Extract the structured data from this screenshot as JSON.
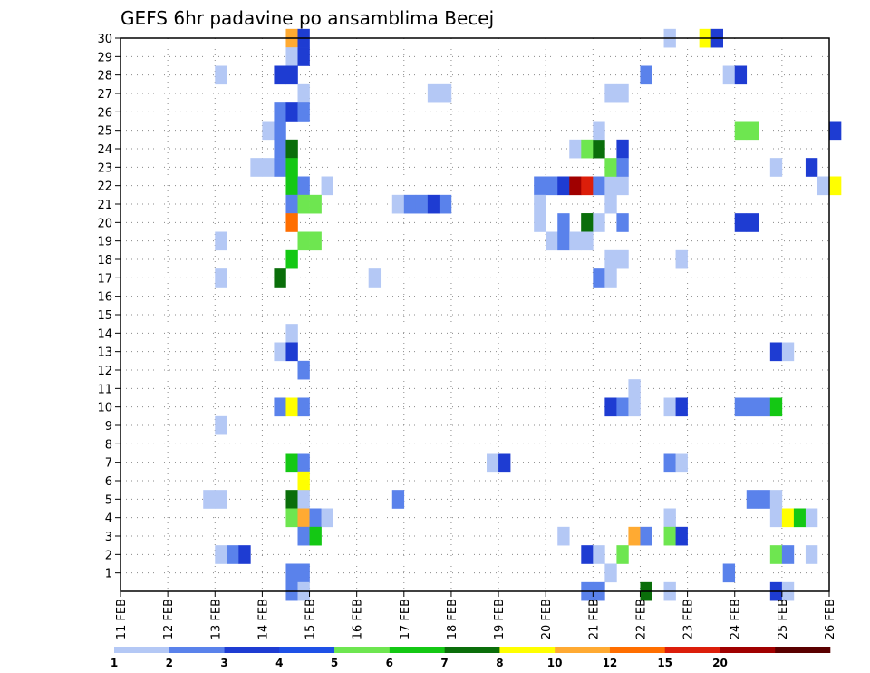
{
  "chart_data": {
    "type": "heatmap",
    "title": "GEFS 6hr padavine po ansamblima Becej",
    "x_ticks": [
      "11 FEB",
      "12 FEB",
      "13 FEB",
      "14 FEB",
      "15 FEB",
      "16 FEB",
      "17 FEB",
      "18 FEB",
      "19 FEB",
      "20 FEB",
      "21 FEB",
      "22 FEB",
      "23 FEB",
      "24 FEB",
      "25 FEB",
      "26 FEB"
    ],
    "y_ticks": [
      "1",
      "2",
      "3",
      "4",
      "5",
      "6",
      "7",
      "8",
      "9",
      "10",
      "11",
      "12",
      "13",
      "14",
      "15",
      "16",
      "17",
      "18",
      "19",
      "20",
      "21",
      "22",
      "23",
      "24",
      "25",
      "26",
      "27",
      "28",
      "29",
      "30"
    ],
    "grid": true,
    "legend": "bottom",
    "colorbar": {
      "labels": [
        "1",
        "2",
        "3",
        "4",
        "5",
        "6",
        "7",
        "8",
        "10",
        "12",
        "15",
        "20"
      ],
      "colors": [
        "#b4c8f5",
        "#5a82eb",
        "#1e3cd2",
        "#1e50e6",
        "#6ee650",
        "#14c814",
        "#0a6e0a",
        "#ffff00",
        "#ffaa32",
        "#ff6e00",
        "#dc1e0a",
        "#a00000",
        "#5a0000"
      ]
    },
    "cells": [
      [
        14.5,
        30,
        8
      ],
      [
        14.75,
        30,
        2
      ],
      [
        14.5,
        29,
        0
      ],
      [
        14.75,
        29,
        2
      ],
      [
        13.0,
        28,
        0
      ],
      [
        14.25,
        28,
        2
      ],
      [
        14.5,
        28,
        2
      ],
      [
        14.75,
        27,
        0
      ],
      [
        14.25,
        26,
        1
      ],
      [
        14.5,
        26,
        2
      ],
      [
        14.75,
        26,
        1
      ],
      [
        14.0,
        25,
        0
      ],
      [
        14.25,
        25,
        1
      ],
      [
        14.25,
        24,
        1
      ],
      [
        14.5,
        24,
        6
      ],
      [
        13.75,
        23,
        0
      ],
      [
        14.0,
        23,
        0
      ],
      [
        14.25,
        23,
        1
      ],
      [
        14.5,
        23,
        5
      ],
      [
        14.5,
        22,
        5
      ],
      [
        14.75,
        22,
        1
      ],
      [
        15.25,
        22,
        0
      ],
      [
        14.5,
        21,
        1
      ],
      [
        14.75,
        21,
        4
      ],
      [
        15.0,
        21,
        4
      ],
      [
        14.5,
        20,
        9
      ],
      [
        13.0,
        19,
        0
      ],
      [
        14.75,
        19,
        4
      ],
      [
        15.0,
        19,
        4
      ],
      [
        14.5,
        18,
        5
      ],
      [
        14.25,
        17,
        6
      ],
      [
        13.0,
        17,
        0
      ],
      [
        14.5,
        14,
        0
      ],
      [
        14.25,
        13,
        0
      ],
      [
        14.5,
        13,
        2
      ],
      [
        14.75,
        12,
        1
      ],
      [
        14.25,
        10,
        1
      ],
      [
        14.5,
        10,
        7
      ],
      [
        14.75,
        10,
        1
      ],
      [
        13.0,
        9,
        0
      ],
      [
        14.5,
        7,
        5
      ],
      [
        14.75,
        7,
        1
      ],
      [
        14.75,
        6,
        7
      ],
      [
        12.75,
        5,
        0
      ],
      [
        13.0,
        5,
        0
      ],
      [
        14.5,
        5,
        6
      ],
      [
        14.75,
        5,
        0
      ],
      [
        14.5,
        4,
        4
      ],
      [
        14.75,
        4,
        8
      ],
      [
        15.0,
        4,
        1
      ],
      [
        15.25,
        4,
        0
      ],
      [
        14.75,
        3,
        1
      ],
      [
        15.0,
        3,
        5
      ],
      [
        13.0,
        2,
        0
      ],
      [
        13.25,
        2,
        1
      ],
      [
        13.5,
        2,
        2
      ],
      [
        14.5,
        1,
        1
      ],
      [
        14.75,
        1,
        1
      ],
      [
        14.5,
        0,
        1
      ],
      [
        14.75,
        0,
        0
      ],
      [
        16.25,
        17,
        0
      ],
      [
        16.75,
        21,
        0
      ],
      [
        17.0,
        21,
        1
      ],
      [
        17.25,
        21,
        1
      ],
      [
        17.5,
        21,
        2
      ],
      [
        17.75,
        21,
        1
      ],
      [
        17.5,
        27,
        0
      ],
      [
        17.75,
        27,
        0
      ],
      [
        16.75,
        5,
        1
      ],
      [
        18.75,
        7,
        0
      ],
      [
        19.0,
        7,
        2
      ],
      [
        19.75,
        22,
        1
      ],
      [
        20.0,
        22,
        1
      ],
      [
        20.25,
        22,
        2
      ],
      [
        20.5,
        22,
        11
      ],
      [
        20.75,
        22,
        10
      ],
      [
        21.0,
        22,
        1
      ],
      [
        21.25,
        22,
        0
      ],
      [
        21.5,
        22,
        0
      ],
      [
        20.5,
        24,
        0
      ],
      [
        20.75,
        24,
        4
      ],
      [
        21.0,
        24,
        6
      ],
      [
        21.5,
        24,
        2
      ],
      [
        21.25,
        23,
        4
      ],
      [
        21.5,
        23,
        1
      ],
      [
        20.75,
        20,
        6
      ],
      [
        21.25,
        21,
        0
      ],
      [
        19.75,
        20,
        0
      ],
      [
        20.25,
        20,
        1
      ],
      [
        20.75,
        20,
        6
      ],
      [
        21.0,
        20,
        0
      ],
      [
        21.5,
        20,
        1
      ],
      [
        20.0,
        19,
        0
      ],
      [
        20.25,
        19,
        1
      ],
      [
        20.5,
        19,
        0
      ],
      [
        20.75,
        19,
        0
      ],
      [
        21.25,
        18,
        0
      ],
      [
        21.5,
        18,
        0
      ],
      [
        21.0,
        17,
        1
      ],
      [
        21.25,
        17,
        0
      ],
      [
        21.25,
        27,
        0
      ],
      [
        21.5,
        27,
        0
      ],
      [
        21.0,
        25,
        0
      ],
      [
        19.75,
        21,
        0
      ],
      [
        21.25,
        10,
        2
      ],
      [
        21.5,
        10,
        1
      ],
      [
        21.75,
        10,
        0
      ],
      [
        21.75,
        11,
        0
      ],
      [
        22.5,
        10,
        0
      ],
      [
        22.75,
        10,
        2
      ],
      [
        20.25,
        3,
        0
      ],
      [
        20.75,
        2,
        2
      ],
      [
        21.0,
        2,
        0
      ],
      [
        21.5,
        2,
        4
      ],
      [
        21.25,
        1,
        0
      ],
      [
        21.75,
        3,
        8
      ],
      [
        22.0,
        3,
        1
      ],
      [
        22.5,
        4,
        0
      ],
      [
        22.5,
        3,
        4
      ],
      [
        22.75,
        3,
        2
      ],
      [
        22.5,
        7,
        1
      ],
      [
        22.75,
        7,
        0
      ],
      [
        22.75,
        18,
        0
      ],
      [
        22.0,
        28,
        1
      ],
      [
        22.5,
        30,
        0
      ],
      [
        23.25,
        30,
        7
      ],
      [
        23.5,
        30,
        2
      ],
      [
        23.75,
        28,
        0
      ],
      [
        24.0,
        28,
        2
      ],
      [
        24.0,
        25,
        4
      ],
      [
        24.25,
        25,
        4
      ],
      [
        24.0,
        20,
        2
      ],
      [
        24.25,
        20,
        2
      ],
      [
        24.75,
        23,
        0
      ],
      [
        25.5,
        23,
        2
      ],
      [
        25.75,
        22,
        0
      ],
      [
        26.0,
        22,
        7
      ],
      [
        26.0,
        25,
        2
      ],
      [
        24.75,
        13,
        2
      ],
      [
        25.0,
        13,
        0
      ],
      [
        24.0,
        10,
        1
      ],
      [
        24.25,
        10,
        1
      ],
      [
        24.5,
        10,
        1
      ],
      [
        24.75,
        10,
        5
      ],
      [
        24.25,
        5,
        1
      ],
      [
        24.5,
        5,
        1
      ],
      [
        24.75,
        5,
        0
      ],
      [
        24.75,
        4,
        0
      ],
      [
        25.0,
        4,
        7
      ],
      [
        25.25,
        4,
        5
      ],
      [
        25.5,
        4,
        0
      ],
      [
        24.75,
        2,
        4
      ],
      [
        25.0,
        2,
        1
      ],
      [
        25.5,
        2,
        0
      ],
      [
        23.75,
        1,
        1
      ],
      [
        24.75,
        0,
        2
      ],
      [
        25.0,
        0,
        0
      ],
      [
        20.75,
        0,
        1
      ],
      [
        21.0,
        0,
        1
      ],
      [
        22.0,
        0,
        6
      ],
      [
        22.5,
        0,
        0
      ]
    ]
  }
}
